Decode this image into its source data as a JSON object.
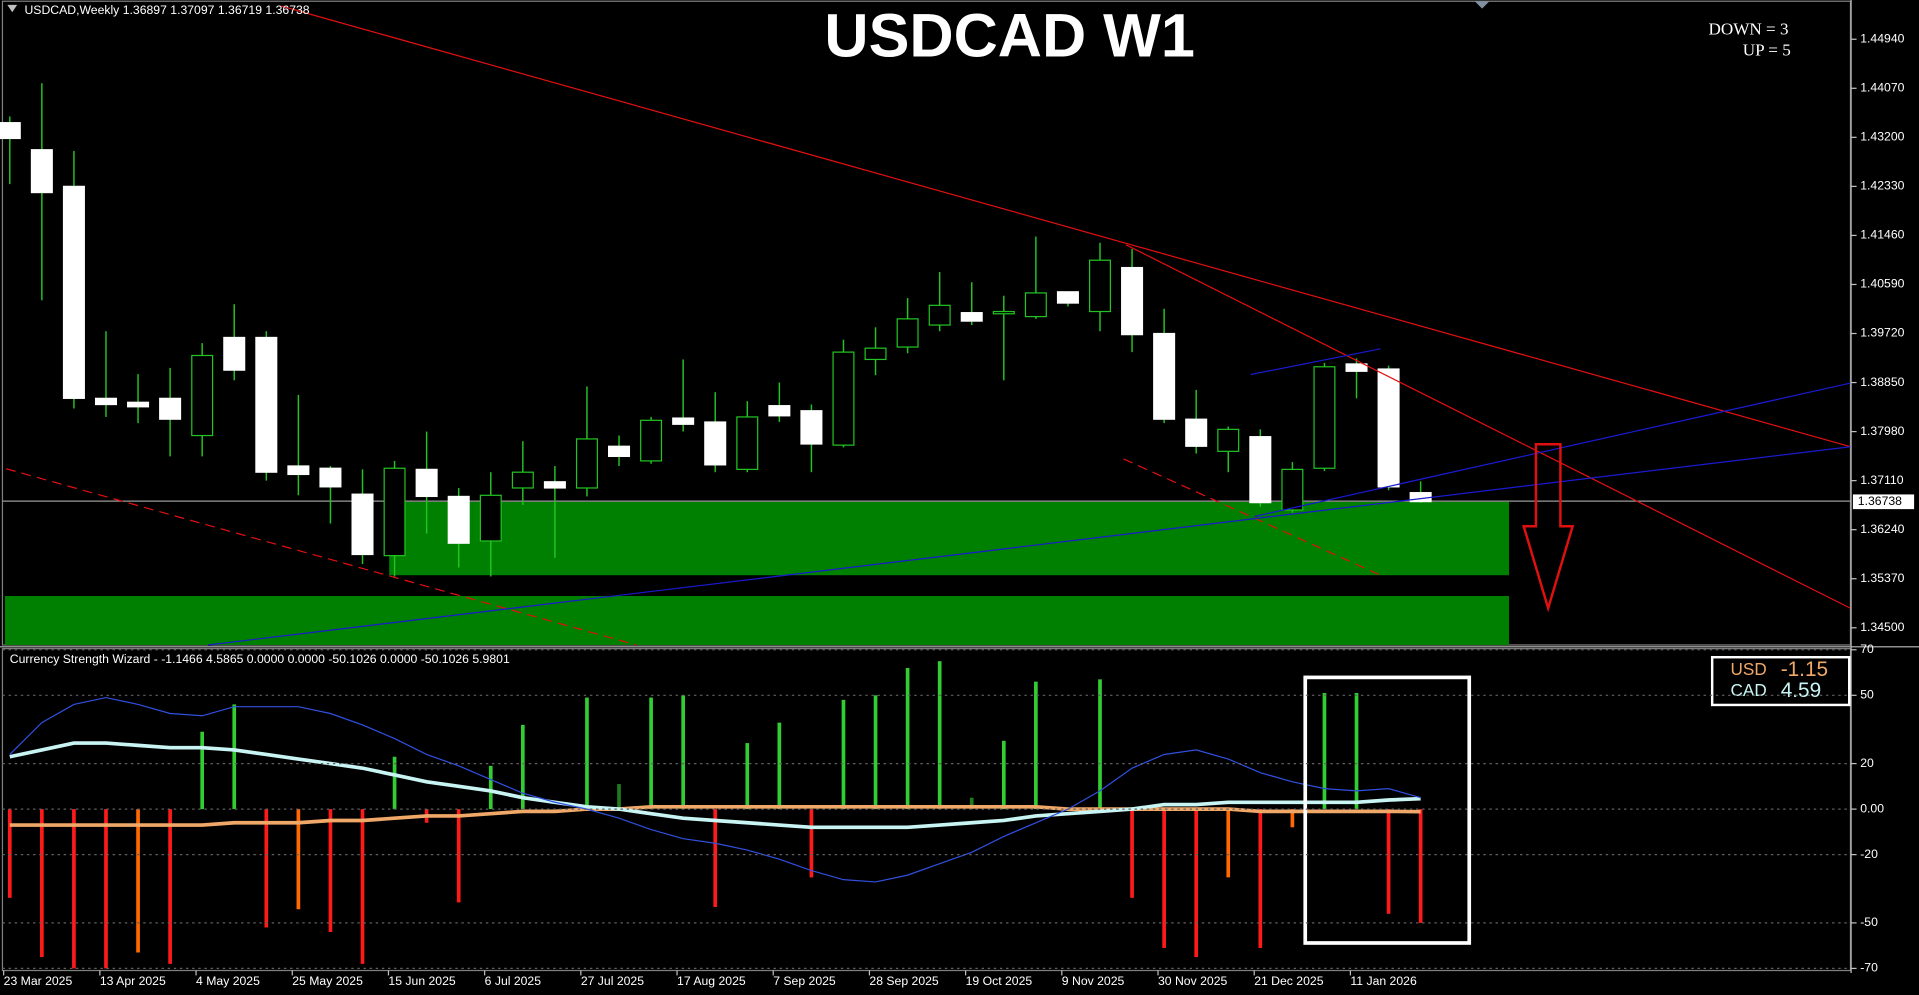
{
  "chart_data": [
    {
      "type": "candlestick",
      "header_symbol": "USDCAD,Weekly",
      "title": "USDCAD W1",
      "annotations": [
        {
          "text": "DOWN = 3",
          "color": "#e00000"
        },
        {
          "text": "UP = 5",
          "color": "#1a1ad0"
        }
      ],
      "categories": [
        "23 Mar 2025",
        null,
        null,
        "13 Apr 2025",
        null,
        null,
        "4 May 2025",
        null,
        null,
        "25 May 2025",
        null,
        null,
        "15 Jun 2025",
        null,
        null,
        "6 Jul 2025",
        null,
        null,
        "27 Jul 2025",
        null,
        null,
        "17 Aug 2025",
        null,
        null,
        "7 Sep 2025",
        null,
        null,
        "28 Sep 2025",
        null,
        null,
        "19 Oct 2025",
        null,
        null,
        "9 Nov 2025",
        null,
        null,
        "30 Nov 2025",
        null,
        null,
        "21 Dec 2025",
        null,
        null,
        "11 Jan 2026",
        null,
        null
      ],
      "open": [
        1.4346,
        1.4298,
        1.4233,
        1.3857,
        1.385,
        1.3857,
        1.3791,
        1.3965,
        1.3965,
        1.3737,
        1.3733,
        1.3687,
        1.3578,
        1.3731,
        1.3683,
        1.3604,
        1.3698,
        1.3709,
        1.3698,
        1.3772,
        1.3746,
        1.3822,
        1.3815,
        1.3731,
        1.3844,
        1.3835,
        1.3774,
        1.3926,
        1.3948,
        1.3987,
        1.4009,
        1.4007,
        1.4002,
        1.4046,
        1.4011,
        1.4089,
        1.3972,
        1.382,
        1.3763,
        1.3789,
        1.3659,
        1.3733,
        1.3918,
        1.3909,
        1.36897
      ],
      "high": [
        1.4357,
        1.4416,
        1.4296,
        1.3976,
        1.39,
        1.3911,
        1.3955,
        1.4024,
        1.3976,
        1.3863,
        1.3737,
        1.3731,
        1.3746,
        1.3798,
        1.3698,
        1.3726,
        1.3781,
        1.3737,
        1.3878,
        1.3791,
        1.3824,
        1.3926,
        1.3868,
        1.3852,
        1.3885,
        1.3846,
        1.3961,
        1.3983,
        1.4035,
        1.4081,
        1.4063,
        1.4039,
        1.4144,
        1.4046,
        1.4133,
        1.4122,
        1.4016,
        1.3872,
        1.3807,
        1.3802,
        1.3744,
        1.392,
        1.3928,
        1.3915,
        1.37097
      ],
      "low": [
        1.4237,
        1.4031,
        1.3839,
        1.3824,
        1.3813,
        1.3754,
        1.3754,
        1.3889,
        1.3711,
        1.3685,
        1.3635,
        1.3563,
        1.3541,
        1.3617,
        1.3557,
        1.3541,
        1.3668,
        1.3574,
        1.3683,
        1.3737,
        1.3741,
        1.3798,
        1.3726,
        1.3726,
        1.3815,
        1.3726,
        1.377,
        1.3898,
        1.3937,
        1.3976,
        1.3987,
        1.3889,
        1.3998,
        1.402,
        1.3976,
        1.3939,
        1.3813,
        1.3759,
        1.3726,
        1.3665,
        1.3654,
        1.3728,
        1.3857,
        1.3694,
        1.36719
      ],
      "close": [
        1.4318,
        1.4222,
        1.3857,
        1.3846,
        1.3842,
        1.382,
        1.3933,
        1.3907,
        1.3726,
        1.3722,
        1.37,
        1.358,
        1.3733,
        1.3683,
        1.36,
        1.3685,
        1.3726,
        1.3698,
        1.3785,
        1.3754,
        1.3818,
        1.3811,
        1.3739,
        1.3824,
        1.3826,
        1.3776,
        1.3939,
        1.3946,
        1.3998,
        1.4022,
        1.3994,
        1.4011,
        1.4044,
        1.4026,
        1.4102,
        1.397,
        1.382,
        1.3772,
        1.3802,
        1.3672,
        1.3731,
        1.3913,
        1.3905,
        1.37,
        1.36738
      ],
      "bull_color": "#000000",
      "bear_color": "#ffffff",
      "wick_color": "#22c322",
      "ylim": [
        1.34195,
        1.45636
      ],
      "yticks": [
        {
          "value": 1.4494,
          "label": "1.44940"
        },
        {
          "value": 1.4407,
          "label": "1.44070"
        },
        {
          "value": 1.432,
          "label": "1.43200"
        },
        {
          "value": 1.4233,
          "label": "1.42330"
        },
        {
          "value": 1.4146,
          "label": "1.41460"
        },
        {
          "value": 1.4059,
          "label": "1.40590"
        },
        {
          "value": 1.3972,
          "label": "1.39720"
        },
        {
          "value": 1.3885,
          "label": "1.38850"
        },
        {
          "value": 1.3798,
          "label": "1.37980"
        },
        {
          "value": 1.3711,
          "label": "1.37110"
        },
        {
          "value": 1.3624,
          "label": "1.36240"
        },
        {
          "value": 1.3537,
          "label": "1.35370"
        },
        {
          "value": 1.345,
          "label": "1.34500"
        }
      ]
    },
    {
      "type": "bar",
      "title": "Currency Strength Wizard - -1.1466 4.5865 0.0000 0.0000 -50.1026 0.0000 -50.1026 5.9801",
      "values": [
        -39,
        -65,
        -70,
        -70,
        -63,
        -68,
        34,
        46,
        -52,
        -44,
        -54,
        -68,
        23,
        -6,
        -41,
        19,
        37,
        null,
        49,
        11,
        49,
        50,
        -43,
        29,
        38,
        -30,
        48,
        50,
        62,
        65,
        5,
        30,
        56,
        null,
        57,
        -39,
        -61,
        -65,
        -30,
        -61,
        -8,
        51,
        51,
        -46,
        -50
      ],
      "colors": [
        "#ff1a1a",
        "#ff1a1a",
        "#ff1a1a",
        "#ff1a1a",
        "#ff6a00",
        "#ff1a1a",
        "#32cd32",
        "#32cd32",
        "#ff1a1a",
        "#ff6a00",
        "#ff1a1a",
        "#ff1a1a",
        "#32cd32",
        "#ff1a1a",
        "#ff1a1a",
        "#32cd32",
        "#32cd32",
        null,
        "#32cd32",
        "#1e7b1e",
        "#32cd32",
        "#32cd32",
        "#ff1a1a",
        "#32cd32",
        "#32cd32",
        "#ff1a1a",
        "#32cd32",
        "#32cd32",
        "#32cd32",
        "#32cd32",
        "#1e7b1e",
        "#32cd32",
        "#32cd32",
        null,
        "#32cd32",
        "#ff1a1a",
        "#ff1a1a",
        "#ff1a1a",
        "#ff6a00",
        "#ff1a1a",
        "#ff6a00",
        "#32cd32",
        "#32cd32",
        "#ff1a1a",
        "#ff1a1a"
      ],
      "series": [
        {
          "name": "USD",
          "color": "#f0a868",
          "width": 3,
          "current": -1.15,
          "values": [
            -7,
            -7,
            -7,
            -7,
            -7,
            -7,
            -7,
            -6,
            -6,
            -6,
            -5,
            -5,
            -4,
            -3,
            -3,
            -2,
            -1,
            -1,
            0,
            0,
            1,
            1,
            1,
            1,
            1,
            1,
            1,
            1,
            1,
            1,
            1,
            1,
            1,
            0,
            0,
            0,
            0,
            0,
            0,
            -1,
            -1,
            -1,
            -1,
            -1,
            -1.1466
          ]
        },
        {
          "name": "CAD",
          "color": "#c8f4f4",
          "width": 3,
          "current": 4.59,
          "values": [
            23,
            26,
            29,
            29,
            28,
            27,
            27,
            26,
            24,
            22,
            20,
            18,
            15,
            12,
            10,
            8,
            5,
            3,
            1,
            0,
            -2,
            -4,
            -5,
            -6,
            -7,
            -8,
            -8,
            -8,
            -8,
            -7,
            -6,
            -5,
            -3,
            -2,
            -1,
            0,
            2,
            2,
            3,
            3,
            3,
            3,
            3,
            4,
            4.5865
          ]
        },
        {
          "color": "#3050e0",
          "width": 1,
          "values": [
            24,
            38,
            46,
            49,
            46,
            42,
            41,
            45,
            45,
            45,
            42,
            37,
            31,
            24,
            19,
            13,
            7,
            3,
            0,
            -4,
            -9,
            -13,
            -15,
            -18,
            -22,
            -27,
            -31,
            -32,
            -29,
            -24,
            -19,
            -12,
            -6,
            0,
            8,
            18,
            24,
            26,
            22,
            16,
            12,
            9,
            8,
            9,
            5
          ]
        }
      ],
      "ylim": [
        -72,
        70.5
      ],
      "yticks": [
        70,
        50,
        20,
        {
          "value": 0,
          "label": "0.00"
        },
        -20,
        -50,
        -70
      ],
      "grid": true
    }
  ]
}
